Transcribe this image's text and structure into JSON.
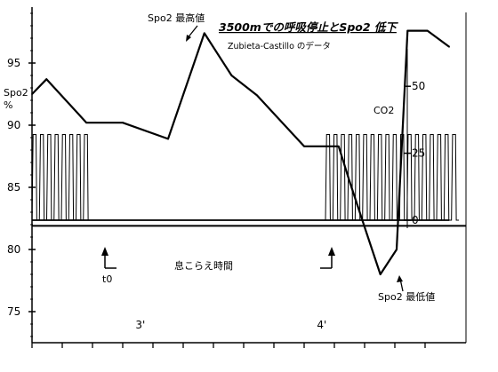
{
  "chart_data": {
    "type": "line",
    "title": "3500mでの呼吸停止とSpo2 低下",
    "subtitle": "Zubieta-Castillo のデータ",
    "ylabel": "Spo2\n%",
    "ylabel_right": "CO2",
    "y_ticks_left": [
      95,
      90,
      85,
      80,
      75
    ],
    "y_ticks_right": [
      50,
      25,
      0
    ],
    "ylim_left": [
      72.5,
      99.5
    ],
    "ylim_right": [
      -3,
      64
    ],
    "x_ticks": [
      "3'",
      "4'"
    ],
    "xlim_minutes": [
      2.4,
      4.7
    ],
    "series": [
      {
        "key": "spo2",
        "x": [
          2.4,
          2.48,
          2.7,
          2.9,
          3.15,
          3.35,
          3.5,
          3.64,
          3.9,
          4.09,
          4.15,
          4.24,
          4.32,
          4.41,
          4.47,
          4.58,
          4.7
        ],
        "y": [
          92.5,
          93.7,
          90.2,
          90.2,
          88.9,
          97.4,
          94.0,
          92.4,
          88.3,
          88.3,
          85.5,
          81.5,
          78.0,
          80.0,
          97.6,
          97.6,
          96.3
        ]
      },
      {
        "key": "co2_baseline",
        "x": [
          2.4,
          4.09,
          4.7
        ],
        "y": [
          0.0,
          0.0,
          0.0
        ]
      }
    ],
    "reference_line": {
      "axis": "left",
      "value": 81.9
    },
    "annotations": {
      "max_label": "Spo2 最高値",
      "min_label": "Spo2 最低値",
      "apnea_label": "息こらえ時間",
      "t0_label": "t0"
    }
  }
}
